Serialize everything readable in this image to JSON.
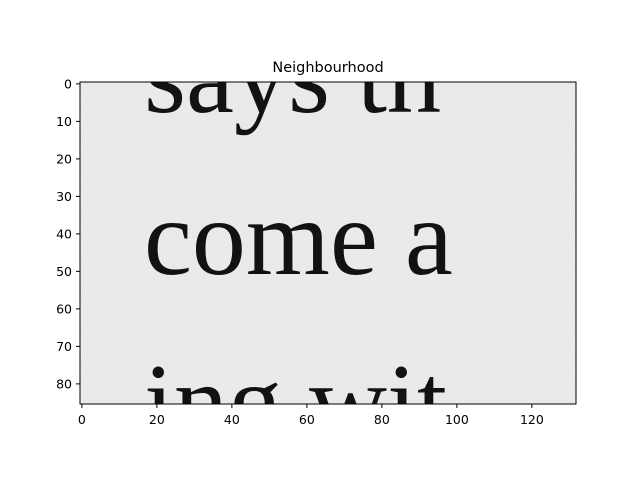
{
  "chart_data": {
    "type": "image",
    "title": "Neighbourhood",
    "xlabel": "",
    "ylabel": "",
    "xlim": [
      0,
      132
    ],
    "ylim": [
      86,
      0
    ],
    "x_ticks": [
      0,
      20,
      40,
      60,
      80,
      100,
      120
    ],
    "y_ticks": [
      0,
      10,
      20,
      30,
      40,
      50,
      60,
      70,
      80
    ],
    "grid": false,
    "colormap": "gray",
    "image_text_lines": [
      "says th",
      "come a",
      "ing wit"
    ]
  },
  "colors": {
    "background": "#ffffff",
    "paper": "#ececec",
    "ink": "#121212",
    "axis": "#000000"
  }
}
